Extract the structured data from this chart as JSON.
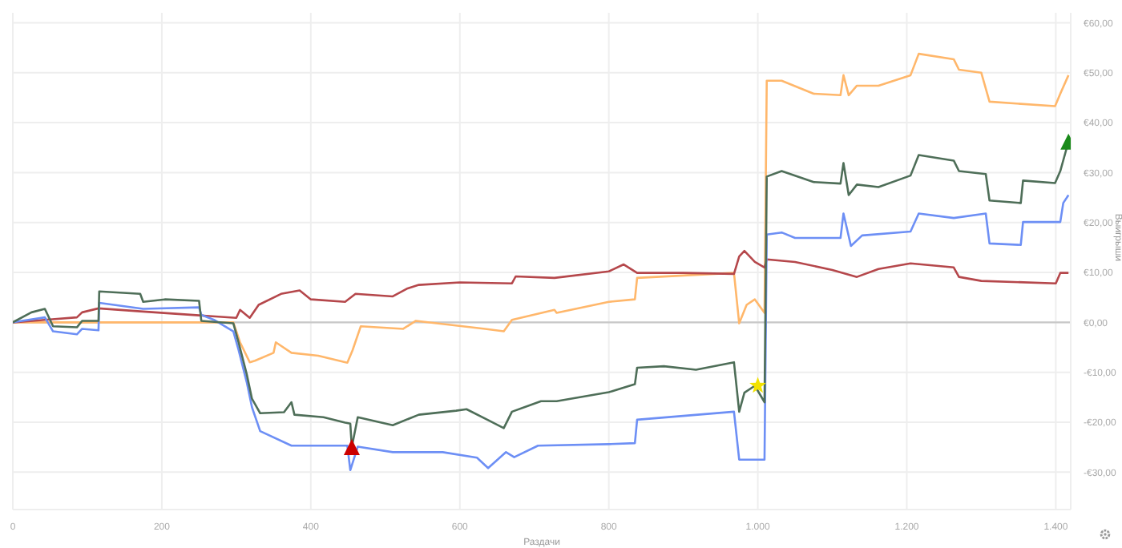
{
  "chart_data": {
    "type": "line",
    "xlabel": "Раздачи",
    "ylabel": "Выигрыши",
    "grid": true,
    "line_style": "solid",
    "marker": "none",
    "xlim": [
      0,
      1420
    ],
    "xticks": [
      0,
      200,
      400,
      600,
      800,
      {
        "value": 1000,
        "label": "1.000"
      },
      {
        "value": 1200,
        "label": "1.200"
      },
      {
        "value": 1400,
        "label": "1.400"
      }
    ],
    "ylim": [
      -37.5,
      62
    ],
    "yticks": [
      {
        "value": -30,
        "label": "-€30,00"
      },
      {
        "value": -20,
        "label": "-€20,00"
      },
      {
        "value": -10,
        "label": "-€10,00"
      },
      {
        "value": 0,
        "label": "€0,00"
      },
      {
        "value": 10,
        "label": "€10,00"
      },
      {
        "value": 20,
        "label": "€20,00"
      },
      {
        "value": 30,
        "label": "€30,00"
      },
      {
        "value": 40,
        "label": "€40,00"
      },
      {
        "value": 50,
        "label": "€50,00"
      },
      {
        "value": 60,
        "label": "€60,00"
      }
    ],
    "ref_lines": [
      {
        "axis": "y",
        "value": 0,
        "color": "#c8c8c8"
      }
    ],
    "series": [
      {
        "color": "#ffb76b",
        "x": [
          0,
          296,
          305,
          318,
          325,
          350,
          353,
          374,
          410,
          449,
          456,
          467,
          524,
          541,
          634,
          659,
          670,
          727,
          730,
          800,
          835,
          838,
          968,
          975,
          985,
          996,
          1009,
          1012,
          1032,
          1075,
          1111,
          1115,
          1122,
          1133,
          1162,
          1205,
          1216,
          1263,
          1270,
          1300,
          1311,
          1399,
          1406,
          1417
        ],
        "values": [
          0,
          0,
          -4,
          -8,
          -7.7,
          -6.1,
          -4,
          -6.1,
          -6.7,
          -8.1,
          -5.6,
          -0.8,
          -1.3,
          0.3,
          -1.3,
          -1.8,
          0.5,
          2.5,
          1.9,
          4.1,
          4.6,
          8.9,
          9.9,
          -0.2,
          3.5,
          4.6,
          1.9,
          48.4,
          48.4,
          45.8,
          45.5,
          49.5,
          45.5,
          47.4,
          47.4,
          49.5,
          53.8,
          52.7,
          50.6,
          50,
          44.2,
          43.3,
          45.8,
          49.5
        ]
      },
      {
        "color": "#b5474b",
        "x": [
          0,
          43,
          86,
          93,
          115,
          171,
          250,
          300,
          305,
          318,
          330,
          360,
          385,
          400,
          446,
          460,
          510,
          530,
          545,
          600,
          670,
          675,
          727,
          800,
          820,
          838,
          900,
          968,
          975,
          982,
          996,
          1009,
          1012,
          1050,
          1100,
          1133,
          1162,
          1205,
          1263,
          1270,
          1300,
          1400,
          1406,
          1417
        ],
        "values": [
          0,
          0.5,
          1,
          2,
          2.8,
          2.2,
          1.4,
          0.9,
          2.5,
          0.9,
          3.5,
          5.7,
          6.4,
          4.6,
          4.1,
          5.7,
          5.2,
          6.8,
          7.5,
          8,
          7.8,
          9.2,
          8.9,
          10.2,
          11.6,
          9.9,
          9.9,
          9.7,
          13.2,
          14.3,
          12.1,
          11,
          12.6,
          12.1,
          10.5,
          9.1,
          10.7,
          11.8,
          11,
          9.1,
          8.3,
          7.8,
          9.9,
          9.9
        ]
      },
      {
        "color": "#6d8ff5",
        "x": [
          0,
          43,
          54,
          86,
          93,
          115,
          116,
          175,
          250,
          253,
          270,
          296,
          303,
          314,
          321,
          332,
          374,
          449,
          453,
          463,
          510,
          577,
          623,
          638,
          662,
          673,
          705,
          800,
          835,
          838,
          968,
          975,
          1009,
          1012,
          1032,
          1050,
          1111,
          1115,
          1125,
          1140,
          1205,
          1216,
          1263,
          1306,
          1311,
          1353,
          1356,
          1406,
          1410,
          1417
        ],
        "values": [
          0,
          1,
          -1.8,
          -2.4,
          -1.3,
          -1.6,
          3.9,
          2.7,
          3,
          1.5,
          0.5,
          -1.8,
          -5.5,
          -12,
          -17,
          -21.8,
          -24.7,
          -24.7,
          -29.6,
          -24.9,
          -26,
          -26,
          -27.1,
          -29.2,
          -26,
          -27,
          -24.7,
          -24.4,
          -24.2,
          -19.5,
          -17.9,
          -27.5,
          -27.5,
          17.6,
          18,
          16.9,
          16.9,
          21.8,
          15.3,
          17.4,
          18.2,
          21.8,
          20.9,
          21.8,
          15.8,
          15.5,
          20.1,
          20.1,
          23.9,
          25.5
        ]
      },
      {
        "color": "#4e6e58",
        "x": [
          0,
          25,
          43,
          54,
          86,
          93,
          115,
          116,
          171,
          175,
          204,
          250,
          253,
          296,
          303,
          314,
          321,
          332,
          364,
          374,
          378,
          417,
          446,
          453,
          455,
          463,
          510,
          545,
          595,
          609,
          638,
          659,
          670,
          709,
          730,
          800,
          835,
          838,
          874,
          917,
          968,
          975,
          982,
          996,
          1009,
          1012,
          1032,
          1075,
          1111,
          1115,
          1122,
          1133,
          1162,
          1205,
          1216,
          1263,
          1270,
          1306,
          1311,
          1353,
          1356,
          1399,
          1406,
          1417
        ],
        "values": [
          0,
          2,
          2.7,
          -0.8,
          -1,
          0.3,
          0.3,
          6.2,
          5.7,
          4.1,
          4.6,
          4.3,
          0.3,
          -0.2,
          -4,
          -10.4,
          -15.3,
          -18.2,
          -18,
          -16,
          -18.5,
          -19,
          -20.1,
          -20.3,
          -25,
          -19,
          -20.6,
          -18.5,
          -17.7,
          -17.4,
          -19.6,
          -21.2,
          -17.9,
          -15.8,
          -15.8,
          -14,
          -12.4,
          -9.1,
          -8.8,
          -9.5,
          -8,
          -17.9,
          -14.1,
          -12.7,
          -16,
          29.2,
          30.3,
          28.1,
          27.8,
          31.9,
          25.5,
          27.6,
          27.1,
          29.4,
          33.5,
          32.4,
          30.3,
          29.7,
          24.4,
          23.9,
          28.4,
          27.9,
          30.3,
          36.2
        ]
      },
      {
        "type": "scatter",
        "marker": "triangle",
        "color": "#cc0000",
        "x": [
          455
        ],
        "values": [
          -25
        ]
      },
      {
        "type": "scatter",
        "marker": "star",
        "color": "#f2e200",
        "x": [
          1000
        ],
        "values": [
          -12.7
        ]
      },
      {
        "type": "scatter",
        "marker": "triangle",
        "color": "#1a8a1a",
        "x": [
          1417
        ],
        "values": [
          36.2
        ]
      }
    ]
  }
}
